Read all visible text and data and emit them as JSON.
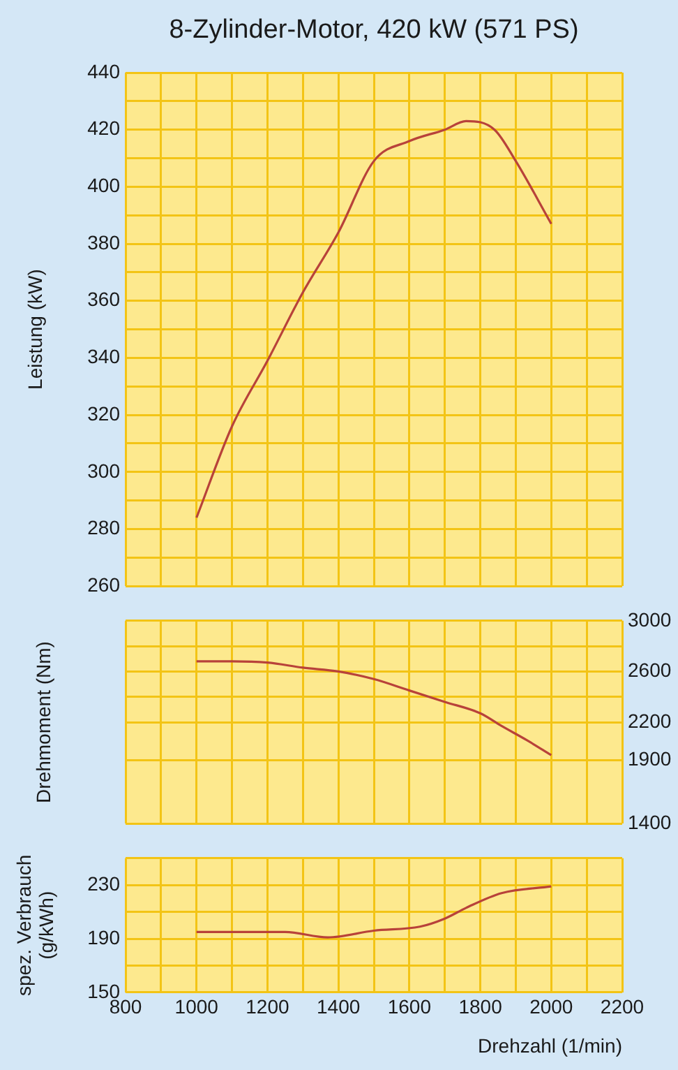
{
  "chart_data": [
    {
      "type": "line",
      "title": "8-Zylinder-Motor, 420 kW (571 PS)",
      "ylabel": "Leistung (kW)",
      "grid": true,
      "legend": false,
      "marker": "none",
      "tick_labels": "y",
      "xlim": [
        800,
        2200
      ],
      "xticks": [
        800,
        {
          "value": 900,
          "label": null
        },
        {
          "value": 1000,
          "label": null
        },
        {
          "value": 1100,
          "label": null
        },
        {
          "value": 1200,
          "label": null
        },
        {
          "value": 1300,
          "label": null
        },
        {
          "value": 1400,
          "label": null
        },
        {
          "value": 1500,
          "label": null
        },
        {
          "value": 1600,
          "label": null
        },
        {
          "value": 1700,
          "label": null
        },
        {
          "value": 1800,
          "label": null
        },
        {
          "value": 1900,
          "label": null
        },
        {
          "value": 2000,
          "label": null
        },
        {
          "value": 2100,
          "label": null
        },
        {
          "value": 2200,
          "label": null
        }
      ],
      "ylim": [
        260,
        440
      ],
      "yticks": [
        260,
        {
          "value": 270,
          "label": null
        },
        280,
        {
          "value": 290,
          "label": null
        },
        300,
        {
          "value": 310,
          "label": null
        },
        320,
        {
          "value": 330,
          "label": null
        },
        340,
        {
          "value": 350,
          "label": null
        },
        360,
        {
          "value": 370,
          "label": null
        },
        380,
        {
          "value": 390,
          "label": null
        },
        400,
        {
          "value": 410,
          "label": null
        },
        420,
        {
          "value": 430,
          "label": null
        },
        440
      ],
      "x": [
        1000,
        1100,
        1200,
        1300,
        1400,
        1500,
        1600,
        1700,
        1760,
        1840,
        1900,
        2000
      ],
      "series": [
        {
          "color": "#b8423a",
          "values": [
            284,
            316,
            339,
            363,
            384,
            409,
            416,
            420,
            423,
            420,
            409,
            387
          ]
        }
      ]
    },
    {
      "type": "line",
      "ylabel": "Drehmoment (Nm)",
      "grid": true,
      "legend": false,
      "marker": "none",
      "tick_labels": "y",
      "xlim": [
        800,
        2200
      ],
      "xticks": [
        800,
        {
          "value": 900,
          "label": null
        },
        {
          "value": 1000,
          "label": null
        },
        {
          "value": 1100,
          "label": null
        },
        {
          "value": 1200,
          "label": null
        },
        {
          "value": 1300,
          "label": null
        },
        {
          "value": 1400,
          "label": null
        },
        {
          "value": 1500,
          "label": null
        },
        {
          "value": 1600,
          "label": null
        },
        {
          "value": 1700,
          "label": null
        },
        {
          "value": 1800,
          "label": null
        },
        {
          "value": 1900,
          "label": null
        },
        {
          "value": 2000,
          "label": null
        },
        {
          "value": 2100,
          "label": null
        },
        {
          "value": 2200,
          "label": null
        }
      ],
      "y2lim": [
        1400,
        3000
      ],
      "y2ticks": [
        1400,
        1900,
        2200,
        {
          "value": 2400,
          "label": null
        },
        2600,
        {
          "value": 2800,
          "label": null
        },
        3000
      ],
      "x": [
        1000,
        1100,
        1200,
        1300,
        1400,
        1500,
        1600,
        1700,
        1800,
        1860,
        1930,
        2000
      ],
      "series": [
        {
          "color": "#b8423a",
          "axis": "y2",
          "values": [
            2680,
            2680,
            2670,
            2630,
            2600,
            2540,
            2450,
            2360,
            2270,
            2170,
            2060,
            1940
          ]
        }
      ]
    },
    {
      "type": "line",
      "ylabel": "spez. Verbrauch (g/kWh)",
      "xlabel": "Drehzahl (1/min)",
      "grid": true,
      "legend": false,
      "marker": "none",
      "xlim": [
        800,
        2200
      ],
      "xticks": [
        800,
        {
          "value": 900,
          "label": null
        },
        1000,
        {
          "value": 1100,
          "label": null
        },
        1200,
        {
          "value": 1300,
          "label": null
        },
        1400,
        {
          "value": 1500,
          "label": null
        },
        1600,
        {
          "value": 1700,
          "label": null
        },
        1800,
        {
          "value": 1900,
          "label": null
        },
        2000,
        {
          "value": 2100,
          "label": null
        },
        2200
      ],
      "ylim": [
        150,
        250
      ],
      "yticks": [
        150,
        {
          "value": 170,
          "label": null
        },
        190,
        {
          "value": 210,
          "label": null
        },
        230,
        {
          "value": 250,
          "label": null
        }
      ],
      "x": [
        1000,
        1250,
        1370,
        1500,
        1630,
        1700,
        1760,
        1860,
        2000
      ],
      "series": [
        {
          "color": "#b8423a",
          "values": [
            195,
            195,
            191,
            196,
            199,
            205,
            213,
            224,
            229
          ]
        }
      ]
    }
  ]
}
